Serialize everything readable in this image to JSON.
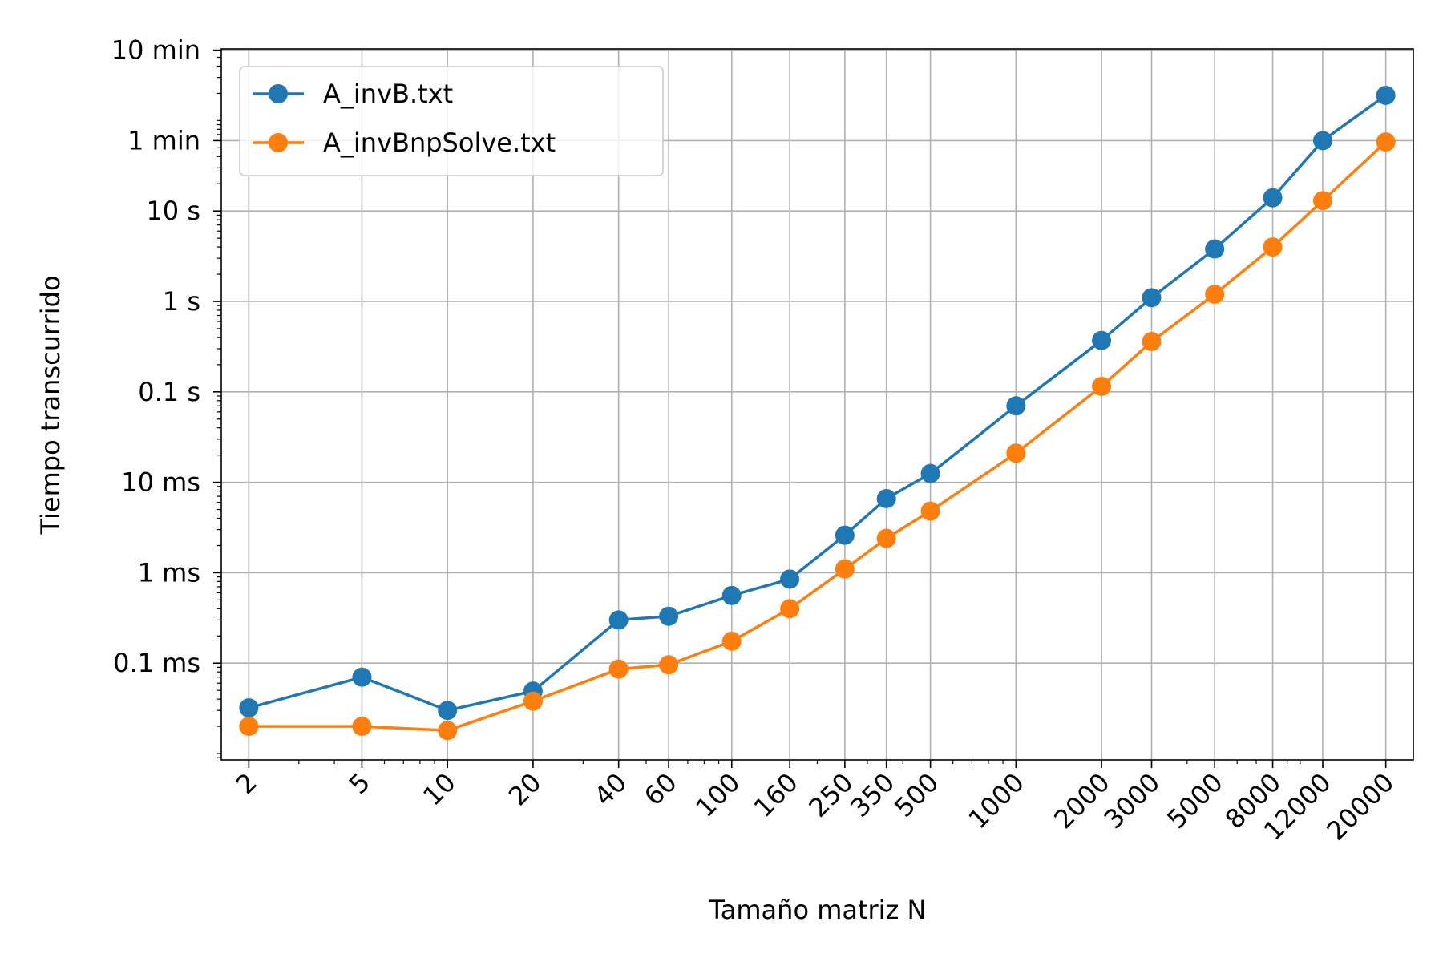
{
  "chart_data": {
    "type": "line",
    "title": "",
    "xlabel": "Tamaño matriz N",
    "ylabel": "Tiempo transcurrido",
    "xscale": "log",
    "yscale": "log",
    "x": [
      2,
      5,
      10,
      20,
      40,
      60,
      100,
      160,
      250,
      350,
      500,
      1000,
      2000,
      3000,
      5000,
      8000,
      12000,
      20000
    ],
    "x_tick_labels": [
      "2",
      "5",
      "10",
      "20",
      "40",
      "60",
      "100",
      "160",
      "250",
      "350",
      "500",
      "1000",
      "2000",
      "3000",
      "5000",
      "8000",
      "12000",
      "20000"
    ],
    "y_unit": "seconds",
    "y_ticks": [
      {
        "value": 0.0001,
        "label": "0.1 ms"
      },
      {
        "value": 0.001,
        "label": "1 ms"
      },
      {
        "value": 0.01,
        "label": "10 ms"
      },
      {
        "value": 0.1,
        "label": "0.1 s"
      },
      {
        "value": 1,
        "label": "1 s"
      },
      {
        "value": 10,
        "label": "10 s"
      },
      {
        "value": 60,
        "label": "1 min"
      },
      {
        "value": 600,
        "label": "10 min"
      }
    ],
    "xlim": [
      1.6,
      25000
    ],
    "ylim": [
      8.5e-06,
      620
    ],
    "grid": true,
    "legend_position": "top-left",
    "series": [
      {
        "name": "A_invB.txt",
        "color": "#1f77b4",
        "values": [
          3.2e-05,
          7e-05,
          3e-05,
          4.9e-05,
          0.0003,
          0.00033,
          0.00056,
          0.00085,
          0.0026,
          0.0066,
          0.0125,
          0.07,
          0.37,
          1.1,
          3.8,
          14,
          60,
          190
        ]
      },
      {
        "name": "A_invBnpSolve.txt",
        "color": "#ff7f0e",
        "values": [
          2e-05,
          2e-05,
          1.8e-05,
          3.8e-05,
          8.6e-05,
          9.6e-05,
          0.000175,
          0.0004,
          0.0011,
          0.0024,
          0.0048,
          0.021,
          0.115,
          0.36,
          1.2,
          4.0,
          13,
          58
        ]
      }
    ]
  }
}
